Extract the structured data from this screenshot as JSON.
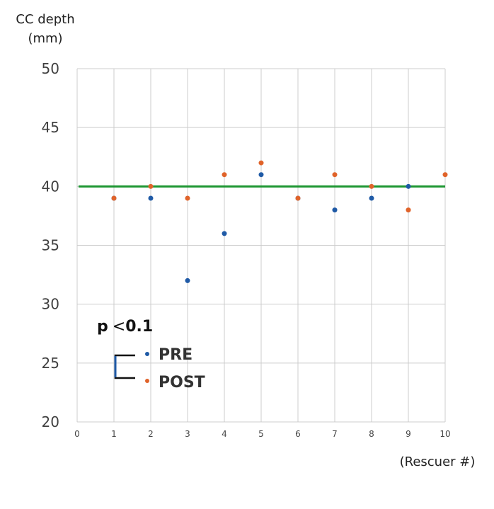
{
  "chart_data": {
    "type": "scatter",
    "title": "",
    "ylabel_line1": "CC depth",
    "ylabel_line2": "(mm)",
    "xlabel": "(Rescuer #)",
    "xlim": [
      0,
      10
    ],
    "ylim": [
      20,
      50
    ],
    "xticks": [
      "0",
      "1",
      "2",
      "3",
      "4",
      "5",
      "6",
      "7",
      "8",
      "9",
      "10"
    ],
    "yticks": [
      "20",
      "25",
      "30",
      "35",
      "40",
      "45",
      "50"
    ],
    "grid": true,
    "reference_line": {
      "y": 40,
      "color": "#1e9632"
    },
    "series": [
      {
        "name": "PRE",
        "color": "#1f5aa6",
        "points": [
          {
            "x": 1,
            "y": 39
          },
          {
            "x": 2,
            "y": 39
          },
          {
            "x": 3,
            "y": 32
          },
          {
            "x": 4,
            "y": 36
          },
          {
            "x": 5,
            "y": 41
          },
          {
            "x": 6,
            "y": 39
          },
          {
            "x": 7,
            "y": 38
          },
          {
            "x": 8,
            "y": 39
          },
          {
            "x": 9,
            "y": 40
          }
        ]
      },
      {
        "name": "POST",
        "color": "#e0632a",
        "points": [
          {
            "x": 1,
            "y": 39
          },
          {
            "x": 2,
            "y": 40
          },
          {
            "x": 3,
            "y": 39
          },
          {
            "x": 4,
            "y": 41
          },
          {
            "x": 5,
            "y": 42
          },
          {
            "x": 6,
            "y": 39
          },
          {
            "x": 7,
            "y": 41
          },
          {
            "x": 8,
            "y": 40
          },
          {
            "x": 9,
            "y": 38
          },
          {
            "x": 10,
            "y": 41
          }
        ]
      }
    ],
    "annotation": {
      "p_symbol": "p",
      "comparator": "<",
      "p_value": "0.1"
    },
    "legend": {
      "placement": "lower-left",
      "bracket_color": "#1f5aa6"
    }
  }
}
